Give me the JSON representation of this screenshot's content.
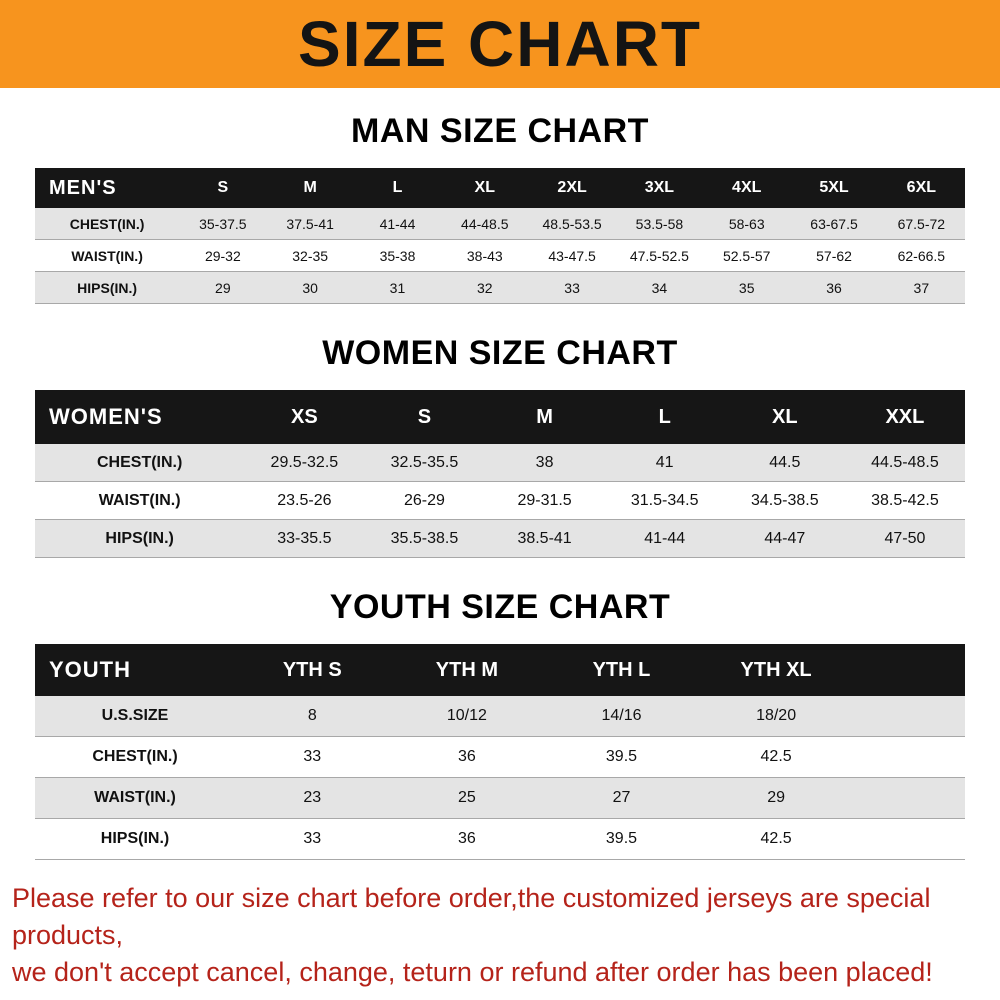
{
  "banner": {
    "title": "SIZE CHART"
  },
  "colors": {
    "banner_bg": "#F7941E",
    "title_text": "#141414",
    "header_bg": "#161616",
    "header_text": "#FFFFFF",
    "stripe_gray": "#E4E4E4",
    "stripe_white": "#FFFFFF",
    "border": "#A8A8A8",
    "notice_red": "#B5231A"
  },
  "tables": {
    "men": {
      "heading": "MAN SIZE CHART",
      "header": [
        "MEN'S",
        "S",
        "M",
        "L",
        "XL",
        "2XL",
        "3XL",
        "4XL",
        "5XL",
        "6XL"
      ],
      "rows": [
        {
          "label": "CHEST(IN.)",
          "values": [
            "35-37.5",
            "37.5-41",
            "41-44",
            "44-48.5",
            "48.5-53.5",
            "53.5-58",
            "58-63",
            "63-67.5",
            "67.5-72"
          ]
        },
        {
          "label": "WAIST(IN.)",
          "values": [
            "29-32",
            "32-35",
            "35-38",
            "38-43",
            "43-47.5",
            "47.5-52.5",
            "52.5-57",
            "57-62",
            "62-66.5"
          ]
        },
        {
          "label": "HIPS(IN.)",
          "values": [
            "29",
            "30",
            "31",
            "32",
            "33",
            "34",
            "35",
            "36",
            "37"
          ]
        }
      ]
    },
    "women": {
      "heading": "WOMEN SIZE CHART",
      "header": [
        "WOMEN'S",
        "XS",
        "S",
        "M",
        "L",
        "XL",
        "XXL"
      ],
      "rows": [
        {
          "label": "CHEST(IN.)",
          "values": [
            "29.5-32.5",
            "32.5-35.5",
            "38",
            "41",
            "44.5",
            "44.5-48.5"
          ]
        },
        {
          "label": "WAIST(IN.)",
          "values": [
            "23.5-26",
            "26-29",
            "29-31.5",
            "31.5-34.5",
            "34.5-38.5",
            "38.5-42.5"
          ]
        },
        {
          "label": "HIPS(IN.)",
          "values": [
            "33-35.5",
            "35.5-38.5",
            "38.5-41",
            "41-44",
            "44-47",
            "47-50"
          ]
        }
      ]
    },
    "youth": {
      "heading": "YOUTH SIZE CHART",
      "header": [
        "YOUTH",
        "YTH S",
        "YTH M",
        "YTH L",
        "YTH XL"
      ],
      "rows": [
        {
          "label": "U.S.SIZE",
          "values": [
            "8",
            "10/12",
            "14/16",
            "18/20"
          ]
        },
        {
          "label": "CHEST(IN.)",
          "values": [
            "33",
            "36",
            "39.5",
            "42.5"
          ]
        },
        {
          "label": "WAIST(IN.)",
          "values": [
            "23",
            "25",
            "27",
            "29"
          ]
        },
        {
          "label": "HIPS(IN.)",
          "values": [
            "33",
            "36",
            "39.5",
            "42.5"
          ]
        }
      ]
    }
  },
  "footer": {
    "line1": "Please refer to our size chart before order,the customized jerseys are special products,",
    "line2": "we don't accept cancel, change, teturn or refund after order has been placed!"
  }
}
